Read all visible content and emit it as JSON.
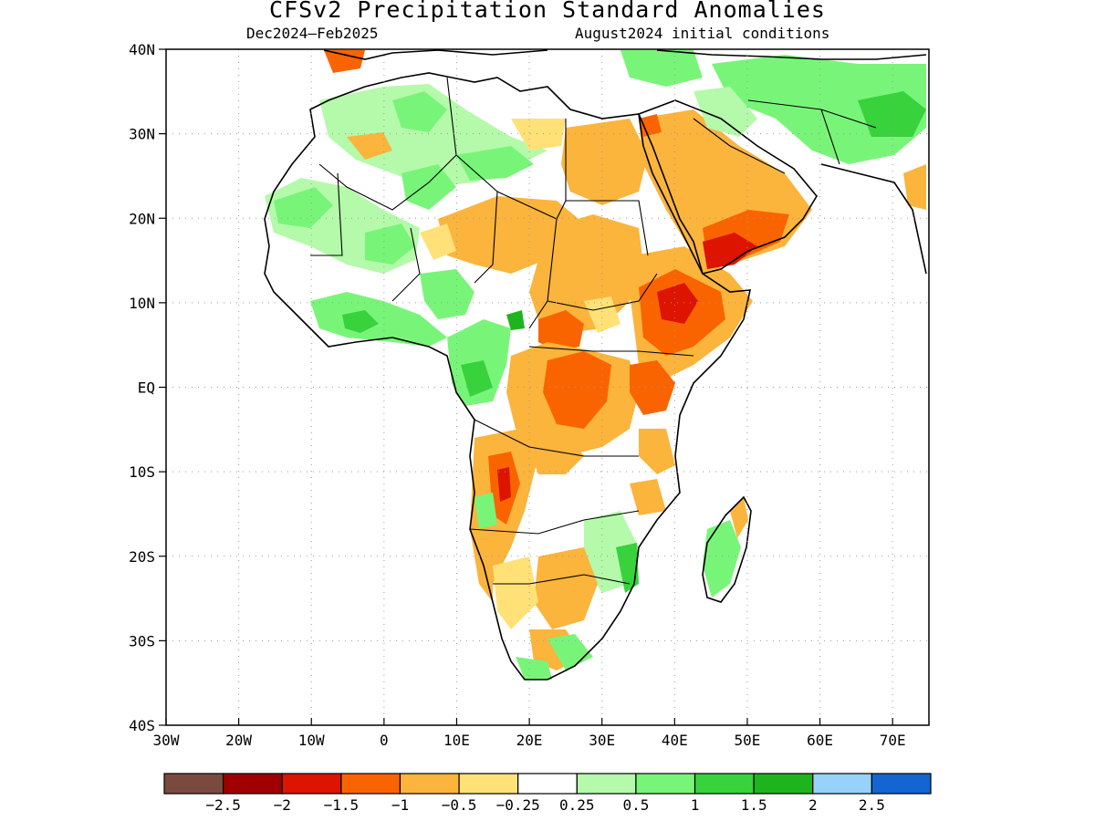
{
  "header": {
    "title": "CFSv2 Precipitation Standard Anomalies",
    "period": "Dec2024–Feb2025",
    "init": "August2024 initial conditions"
  },
  "map": {
    "lon_range": [
      -30,
      75
    ],
    "lat_range": [
      -40,
      40
    ],
    "lat_ticks": [
      {
        "lat": 40,
        "label": "40N"
      },
      {
        "lat": 30,
        "label": "30N"
      },
      {
        "lat": 20,
        "label": "20N"
      },
      {
        "lat": 10,
        "label": "10N"
      },
      {
        "lat": 0,
        "label": "EQ"
      },
      {
        "lat": -10,
        "label": "10S"
      },
      {
        "lat": -20,
        "label": "20S"
      },
      {
        "lat": -30,
        "label": "30S"
      },
      {
        "lat": -40,
        "label": "40S"
      }
    ],
    "lon_ticks": [
      {
        "lon": -30,
        "label": "30W"
      },
      {
        "lon": -20,
        "label": "20W"
      },
      {
        "lon": -10,
        "label": "10W"
      },
      {
        "lon": 0,
        "label": "0"
      },
      {
        "lon": 10,
        "label": "10E"
      },
      {
        "lon": 20,
        "label": "20E"
      },
      {
        "lon": 30,
        "label": "30E"
      },
      {
        "lon": 40,
        "label": "40E"
      },
      {
        "lon": 50,
        "label": "50E"
      },
      {
        "lon": 60,
        "label": "60E"
      },
      {
        "lon": 70,
        "label": "70E"
      }
    ],
    "colors": {
      "land_fill": "#ffffff",
      "coast": "#000000",
      "grid": "#9a9a9a"
    }
  },
  "colorbar": {
    "colors": [
      "#7b4a3f",
      "#a00000",
      "#dc1400",
      "#fa6400",
      "#fbb43c",
      "#ffe178",
      "#ffffff",
      "#b4faaa",
      "#78f578",
      "#37d23c",
      "#1eb41e",
      "#96d2fa",
      "#1464d2"
    ],
    "labels": [
      "−2.5",
      "−2",
      "−1.5",
      "−1",
      "−0.5",
      "−0.25",
      "0.25",
      "0.5",
      "1",
      "1.5",
      "2",
      "2.5"
    ]
  }
}
